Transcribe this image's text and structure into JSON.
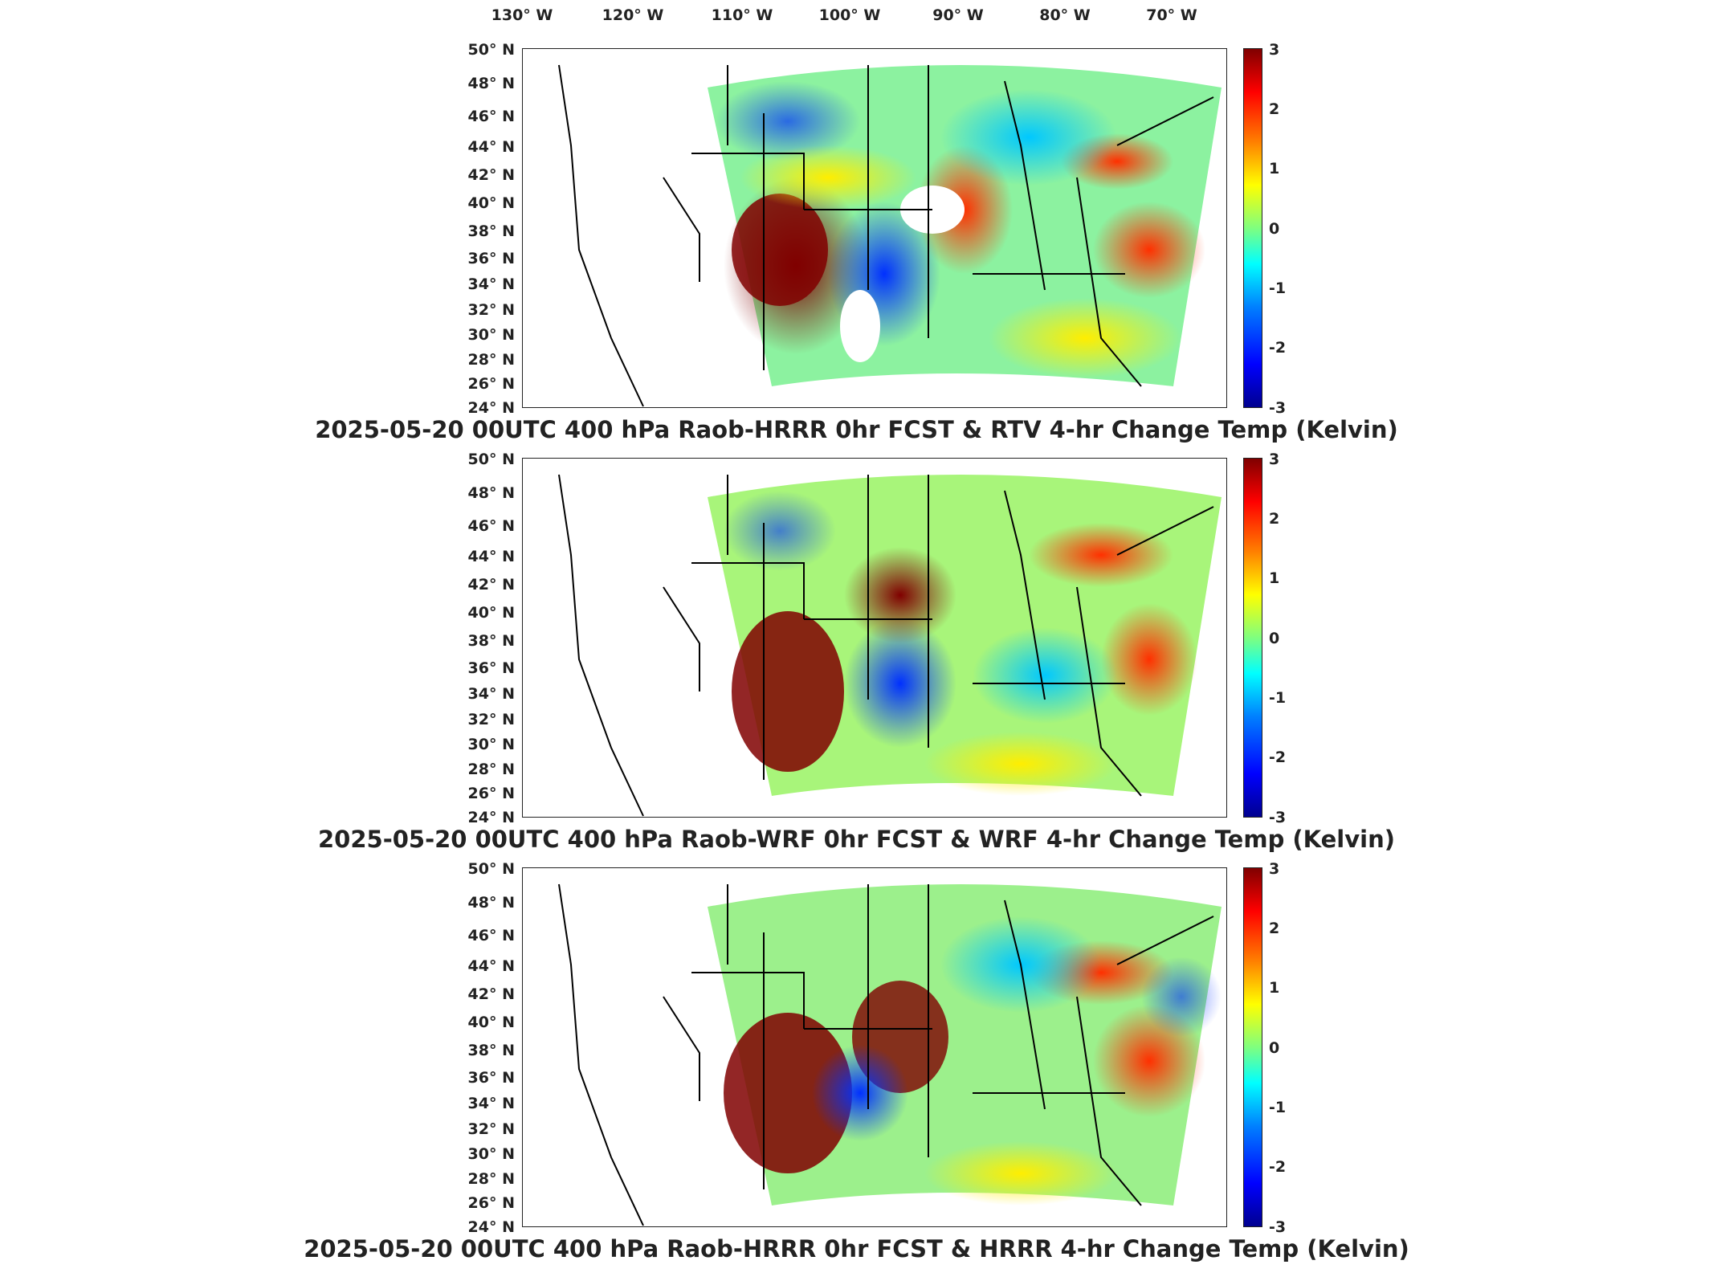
{
  "longitude_labels": [
    "130° W",
    "120° W",
    "110° W",
    "100° W",
    "90° W",
    "80° W",
    "70° W"
  ],
  "latitude_labels": [
    "50° N",
    "48° N",
    "46° N",
    "44° N",
    "42° N",
    "40° N",
    "38° N",
    "36° N",
    "34° N",
    "32° N",
    "30° N",
    "28° N",
    "26° N",
    "24° N"
  ],
  "colorbar": {
    "ticks": [
      "3",
      "2",
      "1",
      "0",
      "-1",
      "-2",
      "-3"
    ],
    "min": -3,
    "max": 3,
    "colormap": "jet",
    "unit": "Kelvin"
  },
  "panels": [
    {
      "title": "2025-05-20 00UTC 400 hPa Raob-HRRR 0hr FCST & RTV 4-hr Change Temp (Kelvin)"
    },
    {
      "title": "2025-05-20 00UTC 400 hPa Raob-WRF 0hr FCST & WRF 4-hr Change Temp (Kelvin)"
    },
    {
      "title": "2025-05-20 00UTC 400 hPa Raob-HRRR 0hr FCST & HRRR 4-hr Change Temp (Kelvin)"
    }
  ],
  "colors": {
    "dark_red": "#800000",
    "red": "#ff2000",
    "orange": "#ff9000",
    "yellow": "#ffff00",
    "cyan": "#00e0ff",
    "blue": "#0040ff",
    "dark_blue": "#00008f",
    "green": "#60ff90"
  }
}
